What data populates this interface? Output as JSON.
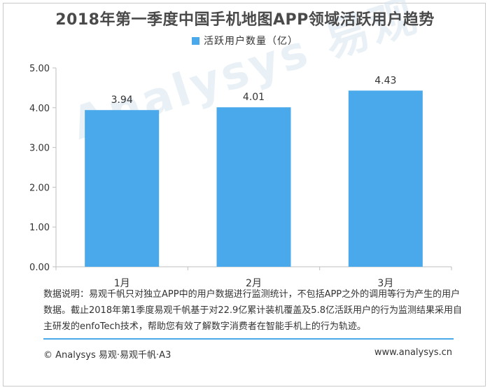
{
  "chart_data": {
    "type": "bar",
    "title": "2018年第一季度中国手机地图APP领域活跃用户趋势",
    "categories": [
      "1月",
      "2月",
      "3月"
    ],
    "series": [
      {
        "name": "活跃用户数量（亿）",
        "values": [
          3.94,
          4.01,
          4.43
        ],
        "color": "#4aa9ea"
      }
    ],
    "data_labels": [
      "3.94",
      "4.01",
      "4.43"
    ],
    "yticks": [
      "0.00",
      "1.00",
      "2.00",
      "3.00",
      "4.00",
      "5.00"
    ],
    "ylim": [
      0,
      5
    ],
    "xlabel": "",
    "ylabel": "",
    "grid": false,
    "legend": "top-center"
  },
  "note": "数据说明：易观千帆只对独立APP中的用户数据进行监测统计，不包括APP之外的调用等行为产生的用户数据。截止2018年第1季度易观千帆基于对22.9亿累计装机覆盖及5.8亿活跃用户的行为监测结果采用自主研发的enfoTech技术，帮助您有效了解数字消费者在智能手机上的行为轨迹。",
  "footer": {
    "left": "© Analysys 易观·易观千帆·A3",
    "right": "www.analysys.cn"
  },
  "watermark": "Analysys 易观",
  "colors": {
    "bar": "#4aa9ea",
    "rule": "#4aa9ea"
  }
}
